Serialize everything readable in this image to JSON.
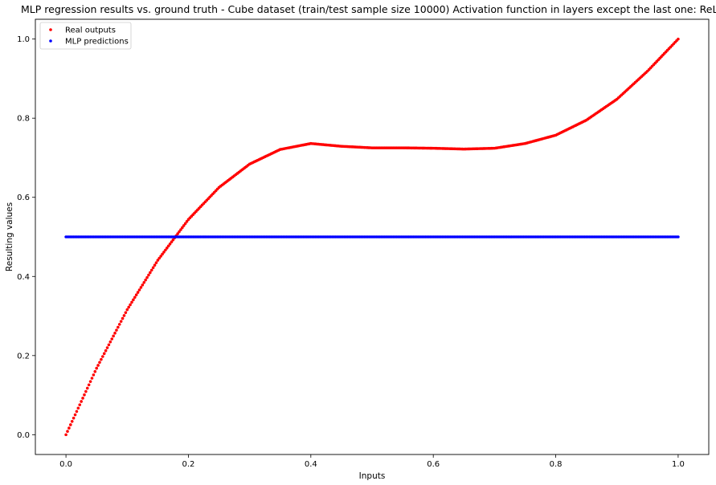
{
  "chart_data": {
    "type": "scatter",
    "title": "MLP regression results vs. ground truth - Cube dataset (train/test sample size 10000) Activation function in layers except the last one: ReLU",
    "xlabel": "Inputs",
    "ylabel": "Resulting values",
    "xlim": [
      -0.05,
      1.05
    ],
    "ylim": [
      -0.05,
      1.05
    ],
    "x_ticks": [
      0.0,
      0.2,
      0.4,
      0.6,
      0.8,
      1.0
    ],
    "x_tick_labels": [
      "0.0",
      "0.2",
      "0.4",
      "0.6",
      "0.8",
      "1.0"
    ],
    "y_ticks": [
      0.0,
      0.2,
      0.4,
      0.6,
      0.8,
      1.0
    ],
    "y_tick_labels": [
      "0.0",
      "0.2",
      "0.4",
      "0.6",
      "0.8",
      "1.0"
    ],
    "grid": false,
    "legend_position": "top-left",
    "series": [
      {
        "name": "Real outputs",
        "color": "#ff0000",
        "x": [
          0.0,
          0.05,
          0.1,
          0.15,
          0.2,
          0.25,
          0.3,
          0.35,
          0.4,
          0.45,
          0.5,
          0.55,
          0.6,
          0.65,
          0.7,
          0.75,
          0.8,
          0.85,
          0.9,
          0.95,
          1.0
        ],
        "y": [
          0.0,
          0.168,
          0.316,
          0.441,
          0.544,
          0.625,
          0.684,
          0.721,
          0.736,
          0.729,
          0.725,
          0.725,
          0.724,
          0.722,
          0.724,
          0.736,
          0.757,
          0.795,
          0.848,
          0.919,
          1.0
        ]
      },
      {
        "name": "MLP predictions",
        "color": "#0000ff",
        "x": [
          0.0,
          0.25,
          0.5,
          0.75,
          1.0
        ],
        "y": [
          0.5,
          0.5,
          0.5,
          0.5,
          0.5
        ]
      }
    ]
  }
}
